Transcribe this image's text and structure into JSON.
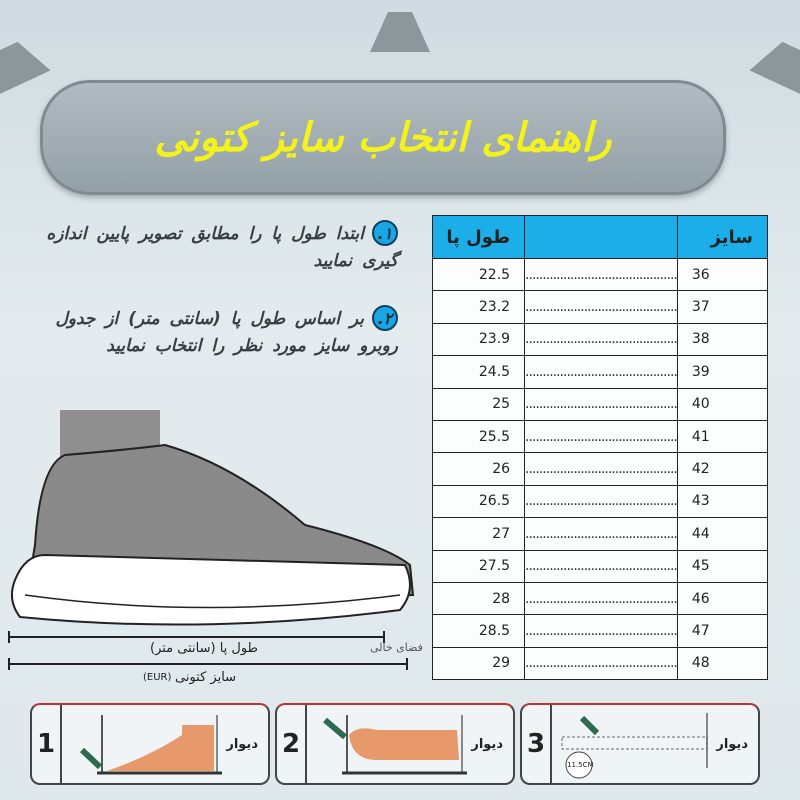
{
  "title": "راهنمای انتخاب سایز کتونی",
  "instructions": [
    {
      "number": "۱.",
      "text": "ابتدا طول پا را مطابق تصویر پایین اندازه گیری نمایید"
    },
    {
      "number": "۲.",
      "text": "بر اساس طول پا (سانتی متر) از جدول روبرو سایز مورد نظر را انتخاب نمایید"
    }
  ],
  "table": {
    "headers": {
      "size": "سایز",
      "dots": "",
      "length": "طول پا"
    },
    "rows": [
      {
        "size": "36",
        "dots": "............................................",
        "length": "22.5"
      },
      {
        "size": "37",
        "dots": "............................................",
        "length": "23.2"
      },
      {
        "size": "38",
        "dots": "............................................",
        "length": "23.9"
      },
      {
        "size": "39",
        "dots": "............................................",
        "length": "24.5"
      },
      {
        "size": "40",
        "dots": "............................................",
        "length": "25"
      },
      {
        "size": "41",
        "dots": "............................................",
        "length": "25.5"
      },
      {
        "size": "42",
        "dots": "............................................",
        "length": "26"
      },
      {
        "size": "43",
        "dots": "............................................",
        "length": "26.5"
      },
      {
        "size": "44",
        "dots": "............................................",
        "length": "27"
      },
      {
        "size": "45",
        "dots": "............................................",
        "length": "27.5"
      },
      {
        "size": "46",
        "dots": "............................................",
        "length": "28"
      },
      {
        "size": "47",
        "dots": "............................................",
        "length": "28.5"
      },
      {
        "size": "48",
        "dots": "............................................",
        "length": "29"
      }
    ]
  },
  "diagram": {
    "foot_length": "طول پا (سانتی متر)",
    "empty_space": "فضای خالی",
    "shoe_size": "سایز کتونی",
    "eur": "(EUR)"
  },
  "steps": [
    {
      "number": "1",
      "wall": "دیوار"
    },
    {
      "number": "2",
      "wall": "دیوار"
    },
    {
      "number": "3",
      "wall": "دیوار",
      "measure": "11.5CM"
    }
  ],
  "colors": {
    "title": "#f3f21b",
    "header": "#1caee8",
    "badge": "#19a6e6"
  }
}
